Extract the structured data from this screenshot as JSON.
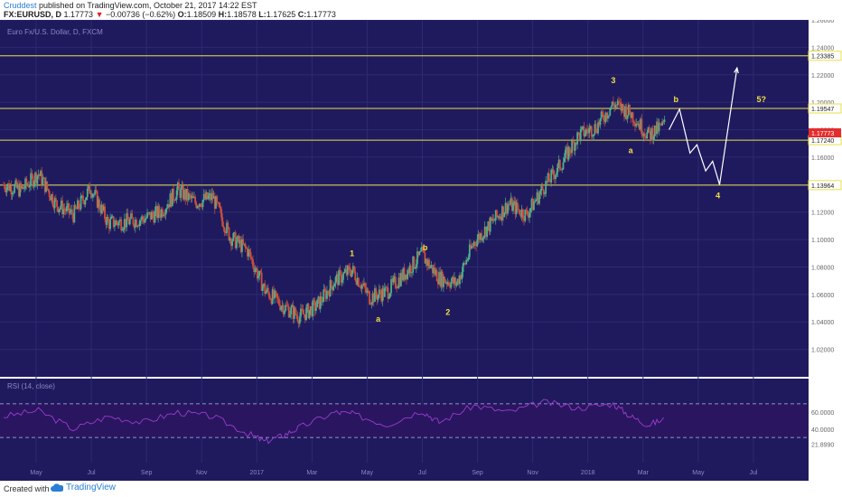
{
  "header": {
    "author": "Cruddest",
    "published": " published on TradingView.com, October 21, 2017 14:22 EST",
    "symbol": "FX:EURUSD, D",
    "last": "1.17773",
    "change": "−0.00736 (−0.62%)",
    "o_label": "O:",
    "o": "1.18509",
    "h_label": "H:",
    "h": "1.18578",
    "l_label": "L:",
    "l": "1.17625",
    "c_label": "C:",
    "c": "1.17773"
  },
  "footer": {
    "created_with": "Created with",
    "brand": "TradingView"
  },
  "colors": {
    "background": "#1f1a5e",
    "grid": "#2d2a70",
    "level_line": "#e8e04a",
    "bull_candle": "#4fb08c",
    "bear_candle": "#d2503a",
    "projection": "#ffffff",
    "wave_label": "#f0e040",
    "rsi_line": "#9a3ccc",
    "rsi_band": "#2a1660"
  },
  "chart_data": {
    "type": "candlestick",
    "title": "Euro Fx/U.S. Dollar, D, FXCM",
    "y_axis": {
      "min": 1.0,
      "max": 1.26,
      "ticks": [
        "1.26000",
        "1.24000",
        "1.22000",
        "1.20000",
        "1.18000",
        "1.16000",
        "1.14000",
        "1.12000",
        "1.10000",
        "1.08000",
        "1.06000",
        "1.04000",
        "1.02000"
      ]
    },
    "x_axis": {
      "labels": [
        "May",
        "Jul",
        "Sep",
        "Nov",
        "2017",
        "Mar",
        "May",
        "Jul",
        "Sep",
        "Nov",
        "2018",
        "Mar",
        "May",
        "Jul"
      ]
    },
    "close_path": [
      {
        "t": 0,
        "v": 1.14
      },
      {
        "t": 1,
        "v": 1.136
      },
      {
        "t": 2,
        "v": 1.148
      },
      {
        "t": 3,
        "v": 1.126
      },
      {
        "t": 4,
        "v": 1.118
      },
      {
        "t": 5,
        "v": 1.138
      },
      {
        "t": 6,
        "v": 1.112
      },
      {
        "t": 7,
        "v": 1.113
      },
      {
        "t": 8,
        "v": 1.115
      },
      {
        "t": 9,
        "v": 1.12
      },
      {
        "t": 10,
        "v": 1.136
      },
      {
        "t": 11,
        "v": 1.127
      },
      {
        "t": 12,
        "v": 1.131
      },
      {
        "t": 13,
        "v": 1.102
      },
      {
        "t": 14,
        "v": 1.092
      },
      {
        "t": 15,
        "v": 1.063
      },
      {
        "t": 16,
        "v": 1.052
      },
      {
        "t": 17,
        "v": 1.044
      },
      {
        "t": 18,
        "v": 1.052
      },
      {
        "t": 19,
        "v": 1.07
      },
      {
        "t": 20,
        "v": 1.078
      },
      {
        "t": 21,
        "v": 1.058
      },
      {
        "t": 22,
        "v": 1.062
      },
      {
        "t": 23,
        "v": 1.075
      },
      {
        "t": 24,
        "v": 1.089
      },
      {
        "t": 25,
        "v": 1.072
      },
      {
        "t": 26,
        "v": 1.068
      },
      {
        "t": 27,
        "v": 1.098
      },
      {
        "t": 28,
        "v": 1.112
      },
      {
        "t": 29,
        "v": 1.126
      },
      {
        "t": 30,
        "v": 1.118
      },
      {
        "t": 31,
        "v": 1.138
      },
      {
        "t": 32,
        "v": 1.155
      },
      {
        "t": 33,
        "v": 1.176
      },
      {
        "t": 34,
        "v": 1.182
      },
      {
        "t": 35,
        "v": 1.199
      },
      {
        "t": 36,
        "v": 1.192
      },
      {
        "t": 37,
        "v": 1.176
      },
      {
        "t": 38,
        "v": 1.184
      }
    ],
    "levels": [
      {
        "name": "1.23385",
        "value": 1.23385
      },
      {
        "name": "1.19547",
        "value": 1.19547
      },
      {
        "name": "1.17240",
        "value": 1.1724
      },
      {
        "name": "1.13964",
        "value": 1.13964
      }
    ],
    "last_price": {
      "label": "1.17773",
      "value": 1.17773
    },
    "projection": [
      {
        "t": 38.2,
        "v": 1.18
      },
      {
        "t": 38.8,
        "v": 1.195
      },
      {
        "t": 39.4,
        "v": 1.163
      },
      {
        "t": 39.8,
        "v": 1.169
      },
      {
        "t": 40.3,
        "v": 1.15
      },
      {
        "t": 40.7,
        "v": 1.157
      },
      {
        "t": 41.1,
        "v": 1.14
      },
      {
        "t": 42.1,
        "v": 1.225
      }
    ],
    "wave_labels": [
      {
        "text": "1",
        "t": 20,
        "v": 1.088
      },
      {
        "text": "a",
        "t": 21.5,
        "v": 1.04
      },
      {
        "text": "b",
        "t": 24.2,
        "v": 1.092
      },
      {
        "text": "2",
        "t": 25.5,
        "v": 1.045
      },
      {
        "text": "3",
        "t": 35,
        "v": 1.214
      },
      {
        "text": "a",
        "t": 36,
        "v": 1.163
      },
      {
        "text": "b",
        "t": 38.6,
        "v": 1.2
      },
      {
        "text": "4",
        "t": 41,
        "v": 1.13
      },
      {
        "text": "5?",
        "t": 43.5,
        "v": 1.2
      }
    ],
    "rsi": {
      "title": "RSI (14, close)",
      "upper": 70,
      "lower": 30,
      "ticks": [
        "60.0000",
        "40.0000",
        "21.8990"
      ],
      "path": [
        {
          "t": 0,
          "v": 55
        },
        {
          "t": 2,
          "v": 62
        },
        {
          "t": 4,
          "v": 40
        },
        {
          "t": 6,
          "v": 55
        },
        {
          "t": 8,
          "v": 48
        },
        {
          "t": 10,
          "v": 60
        },
        {
          "t": 12,
          "v": 55
        },
        {
          "t": 14,
          "v": 35
        },
        {
          "t": 15,
          "v": 25
        },
        {
          "t": 16,
          "v": 32
        },
        {
          "t": 17,
          "v": 42
        },
        {
          "t": 19,
          "v": 60
        },
        {
          "t": 20,
          "v": 58
        },
        {
          "t": 22,
          "v": 45
        },
        {
          "t": 24,
          "v": 62
        },
        {
          "t": 25,
          "v": 48
        },
        {
          "t": 27,
          "v": 68
        },
        {
          "t": 29,
          "v": 60
        },
        {
          "t": 31,
          "v": 72
        },
        {
          "t": 33,
          "v": 65
        },
        {
          "t": 35,
          "v": 70
        },
        {
          "t": 36,
          "v": 55
        },
        {
          "t": 37,
          "v": 45
        },
        {
          "t": 38,
          "v": 52
        }
      ]
    }
  }
}
